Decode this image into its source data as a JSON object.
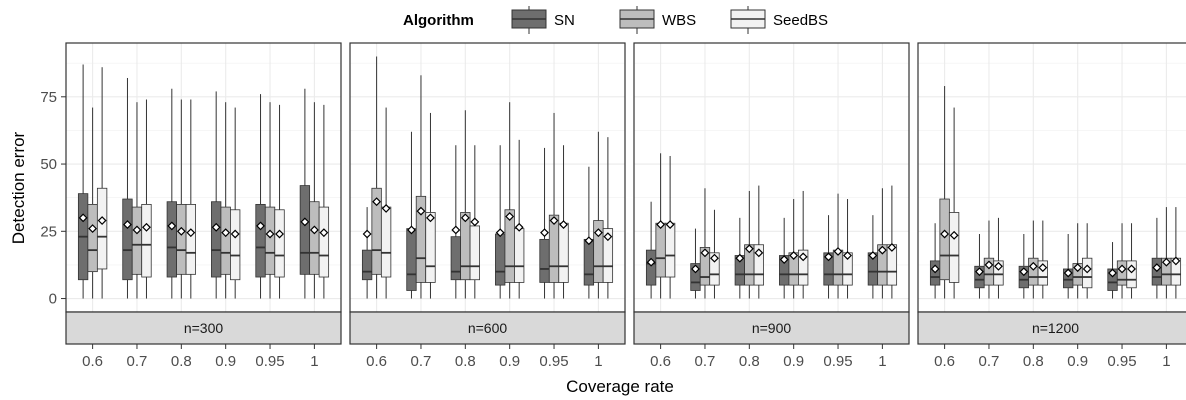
{
  "chart_data": {
    "type": "box",
    "xlabel": "Coverage rate",
    "ylabel": "Detection error",
    "ylim": [
      -5,
      95
    ],
    "yticks": [
      0,
      25,
      50,
      75
    ],
    "categories": [
      "0.6",
      "0.7",
      "0.8",
      "0.9",
      "0.95",
      "1"
    ],
    "legend": {
      "title": "Algorithm",
      "position": "top",
      "entries": [
        {
          "name": "SN",
          "color": "#6e6e6e"
        },
        {
          "name": "WBS",
          "color": "#bdbdbd"
        },
        {
          "name": "SeedBS",
          "color": "#f2f2f2"
        }
      ]
    },
    "strip_color": "#d9d9d9",
    "grid": true,
    "panels": [
      {
        "label": "n=300",
        "series": [
          {
            "name": "SN",
            "boxes": [
              {
                "min": 0,
                "q1": 7,
                "median": 23,
                "q3": 39,
                "max": 87,
                "mean": 30
              },
              {
                "min": 0,
                "q1": 7,
                "median": 18,
                "q3": 37,
                "max": 82,
                "mean": 27.5
              },
              {
                "min": 0,
                "q1": 8,
                "median": 19,
                "q3": 36,
                "max": 78,
                "mean": 27
              },
              {
                "min": 0,
                "q1": 8,
                "median": 18,
                "q3": 36,
                "max": 77,
                "mean": 26.5
              },
              {
                "min": 0,
                "q1": 8,
                "median": 19,
                "q3": 35,
                "max": 76,
                "mean": 27
              },
              {
                "min": 0,
                "q1": 9,
                "median": 17,
                "q3": 42,
                "max": 78,
                "mean": 28.5
              }
            ]
          },
          {
            "name": "WBS",
            "boxes": [
              {
                "min": 0,
                "q1": 10,
                "median": 18,
                "q3": 35,
                "max": 71,
                "mean": 26
              },
              {
                "min": 0,
                "q1": 9,
                "median": 20,
                "q3": 34,
                "max": 73,
                "mean": 25.5
              },
              {
                "min": 0,
                "q1": 9,
                "median": 18,
                "q3": 35,
                "max": 74,
                "mean": 25
              },
              {
                "min": 0,
                "q1": 9,
                "median": 17,
                "q3": 34,
                "max": 73,
                "mean": 24.5
              },
              {
                "min": 0,
                "q1": 9,
                "median": 17,
                "q3": 34,
                "max": 73,
                "mean": 24
              },
              {
                "min": 0,
                "q1": 9,
                "median": 17,
                "q3": 36,
                "max": 73,
                "mean": 25.5
              }
            ]
          },
          {
            "name": "SeedBS",
            "boxes": [
              {
                "min": 0,
                "q1": 11,
                "median": 23,
                "q3": 41,
                "max": 86,
                "mean": 29
              },
              {
                "min": 0,
                "q1": 8,
                "median": 20,
                "q3": 35,
                "max": 74,
                "mean": 26.5
              },
              {
                "min": 0,
                "q1": 9,
                "median": 17,
                "q3": 35,
                "max": 74,
                "mean": 24.5
              },
              {
                "min": 0,
                "q1": 7,
                "median": 16,
                "q3": 33,
                "max": 71,
                "mean": 24
              },
              {
                "min": 0,
                "q1": 8,
                "median": 16,
                "q3": 33,
                "max": 72,
                "mean": 24
              },
              {
                "min": 0,
                "q1": 8,
                "median": 16,
                "q3": 34,
                "max": 72,
                "mean": 24.5
              }
            ]
          }
        ]
      },
      {
        "label": "n=600",
        "series": [
          {
            "name": "SN",
            "boxes": [
              {
                "min": 0,
                "q1": 7,
                "median": 10,
                "q3": 18,
                "max": 34,
                "mean": 24
              },
              {
                "min": 0,
                "q1": 3,
                "median": 9,
                "q3": 26,
                "max": 62,
                "mean": 25.5
              },
              {
                "min": 0,
                "q1": 7,
                "median": 10,
                "q3": 23,
                "max": 57,
                "mean": 25.5
              },
              {
                "min": 0,
                "q1": 5,
                "median": 10,
                "q3": 24,
                "max": 57,
                "mean": 24.5
              },
              {
                "min": 0,
                "q1": 6,
                "median": 11,
                "q3": 22,
                "max": 56,
                "mean": 24.5
              },
              {
                "min": 0,
                "q1": 5,
                "median": 9,
                "q3": 22,
                "max": 49,
                "mean": 21.5
              }
            ]
          },
          {
            "name": "WBS",
            "boxes": [
              {
                "min": 0,
                "q1": 9,
                "median": 18,
                "q3": 41,
                "max": 90,
                "mean": 36
              },
              {
                "min": 0,
                "q1": 6,
                "median": 15,
                "q3": 38,
                "max": 83,
                "mean": 32.5
              },
              {
                "min": 0,
                "q1": 7,
                "median": 12,
                "q3": 32,
                "max": 70,
                "mean": 30
              },
              {
                "min": 0,
                "q1": 6,
                "median": 12,
                "q3": 33,
                "max": 73,
                "mean": 30.5
              },
              {
                "min": 0,
                "q1": 6,
                "median": 12,
                "q3": 31,
                "max": 69,
                "mean": 29
              },
              {
                "min": 0,
                "q1": 6,
                "median": 12,
                "q3": 29,
                "max": 62,
                "mean": 24.5
              }
            ]
          },
          {
            "name": "SeedBS",
            "boxes": [
              {
                "min": 0,
                "q1": 8,
                "median": 17,
                "q3": 34,
                "max": 71,
                "mean": 33.5
              },
              {
                "min": 0,
                "q1": 6,
                "median": 12,
                "q3": 32,
                "max": 69,
                "mean": 30
              },
              {
                "min": 0,
                "q1": 7,
                "median": 12,
                "q3": 27,
                "max": 57,
                "mean": 28.5
              },
              {
                "min": 0,
                "q1": 6,
                "median": 12,
                "q3": 26,
                "max": 59,
                "mean": 26.5
              },
              {
                "min": 0,
                "q1": 6,
                "median": 12,
                "q3": 28,
                "max": 57,
                "mean": 27.5
              },
              {
                "min": 0,
                "q1": 6,
                "median": 12,
                "q3": 26,
                "max": 60,
                "mean": 23
              }
            ]
          }
        ]
      },
      {
        "label": "n=900",
        "series": [
          {
            "name": "SN",
            "boxes": [
              {
                "min": 0,
                "q1": 5,
                "median": 13,
                "q3": 18,
                "max": 36,
                "mean": 13.5
              },
              {
                "min": 0,
                "q1": 3,
                "median": 6,
                "q3": 13,
                "max": 26,
                "mean": 11
              },
              {
                "min": 0,
                "q1": 5,
                "median": 9,
                "q3": 16,
                "max": 30,
                "mean": 15
              },
              {
                "min": 0,
                "q1": 5,
                "median": 9,
                "q3": 16,
                "max": 30,
                "mean": 14.5
              },
              {
                "min": 0,
                "q1": 5,
                "median": 9,
                "q3": 17,
                "max": 31,
                "mean": 15.5
              },
              {
                "min": 0,
                "q1": 5,
                "median": 10,
                "q3": 17,
                "max": 31,
                "mean": 16
              }
            ]
          },
          {
            "name": "WBS",
            "boxes": [
              {
                "min": 0,
                "q1": 8,
                "median": 15,
                "q3": 28,
                "max": 54,
                "mean": 27.5
              },
              {
                "min": 0,
                "q1": 5,
                "median": 8,
                "q3": 19,
                "max": 41,
                "mean": 17
              },
              {
                "min": 0,
                "q1": 5,
                "median": 9,
                "q3": 20,
                "max": 40,
                "mean": 18.5
              },
              {
                "min": 0,
                "q1": 5,
                "median": 9,
                "q3": 17,
                "max": 37,
                "mean": 16
              },
              {
                "min": 0,
                "q1": 5,
                "median": 9,
                "q3": 18,
                "max": 39,
                "mean": 17.5
              },
              {
                "min": 0,
                "q1": 5,
                "median": 10,
                "q3": 20,
                "max": 41,
                "mean": 18
              }
            ]
          },
          {
            "name": "SeedBS",
            "boxes": [
              {
                "min": 0,
                "q1": 8,
                "median": 16,
                "q3": 28,
                "max": 53,
                "mean": 27.5
              },
              {
                "min": 0,
                "q1": 5,
                "median": 9,
                "q3": 17,
                "max": 33,
                "mean": 15
              },
              {
                "min": 0,
                "q1": 5,
                "median": 9,
                "q3": 20,
                "max": 42,
                "mean": 17
              },
              {
                "min": 0,
                "q1": 5,
                "median": 9,
                "q3": 18,
                "max": 40,
                "mean": 15.5
              },
              {
                "min": 0,
                "q1": 5,
                "median": 9,
                "q3": 17,
                "max": 37,
                "mean": 16
              },
              {
                "min": 0,
                "q1": 5,
                "median": 10,
                "q3": 20,
                "max": 42,
                "mean": 19
              }
            ]
          }
        ]
      },
      {
        "label": "n=1200",
        "series": [
          {
            "name": "SN",
            "boxes": [
              {
                "min": 0,
                "q1": 5,
                "median": 8,
                "q3": 14,
                "max": 28,
                "mean": 11
              },
              {
                "min": 0,
                "q1": 4,
                "median": 7,
                "q3": 12,
                "max": 24,
                "mean": 10
              },
              {
                "min": 0,
                "q1": 4,
                "median": 7,
                "q3": 12,
                "max": 24,
                "mean": 10
              },
              {
                "min": 0,
                "q1": 4,
                "median": 7,
                "q3": 11,
                "max": 24,
                "mean": 9.5
              },
              {
                "min": 0,
                "q1": 3,
                "median": 6,
                "q3": 11,
                "max": 21,
                "mean": 9.5
              },
              {
                "min": 0,
                "q1": 5,
                "median": 8,
                "q3": 15,
                "max": 30,
                "mean": 11.5
              }
            ]
          },
          {
            "name": "WBS",
            "boxes": [
              {
                "min": 0,
                "q1": 7,
                "median": 16,
                "q3": 37,
                "max": 79,
                "mean": 24
              },
              {
                "min": 0,
                "q1": 5,
                "median": 9,
                "q3": 15,
                "max": 29,
                "mean": 12.5
              },
              {
                "min": 0,
                "q1": 5,
                "median": 8,
                "q3": 15,
                "max": 29,
                "mean": 12
              },
              {
                "min": 0,
                "q1": 5,
                "median": 8,
                "q3": 13,
                "max": 28,
                "mean": 11.5
              },
              {
                "min": 0,
                "q1": 5,
                "median": 7,
                "q3": 14,
                "max": 28,
                "mean": 11
              },
              {
                "min": 0,
                "q1": 5,
                "median": 9,
                "q3": 15,
                "max": 34,
                "mean": 13.5
              }
            ]
          },
          {
            "name": "SeedBS",
            "boxes": [
              {
                "min": 0,
                "q1": 6,
                "median": 16,
                "q3": 32,
                "max": 71,
                "mean": 23.5
              },
              {
                "min": 0,
                "q1": 5,
                "median": 9,
                "q3": 14,
                "max": 30,
                "mean": 12
              },
              {
                "min": 0,
                "q1": 5,
                "median": 8,
                "q3": 14,
                "max": 29,
                "mean": 11.5
              },
              {
                "min": 0,
                "q1": 4,
                "median": 8,
                "q3": 15,
                "max": 28,
                "mean": 11
              },
              {
                "min": 0,
                "q1": 4,
                "median": 7,
                "q3": 14,
                "max": 28,
                "mean": 11
              },
              {
                "min": 0,
                "q1": 5,
                "median": 9,
                "q3": 15,
                "max": 34,
                "mean": 14
              }
            ]
          }
        ]
      }
    ]
  }
}
